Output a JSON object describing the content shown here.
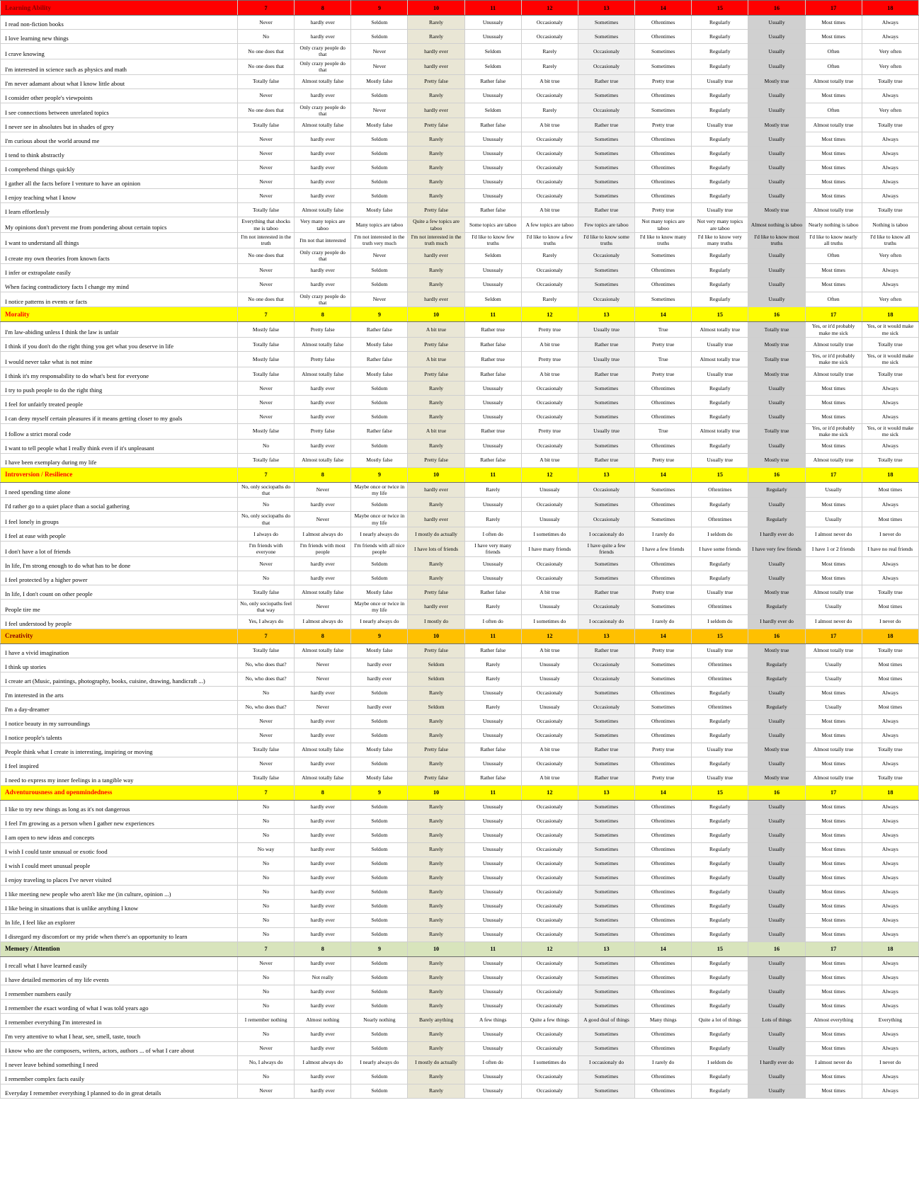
{
  "columns": [
    "7",
    "8",
    "9",
    "10",
    "11",
    "12",
    "13",
    "14",
    "15",
    "16",
    "17",
    "18"
  ],
  "column_bands": {
    "10": "#e9e6d5",
    "13": "#efefef",
    "16": "#d0d0d0"
  },
  "scales": {
    "freq_never": [
      "Never",
      "hardly ever",
      "Seldom",
      "Rarely",
      "Unusualy",
      "Occasionaly",
      "Sometimes",
      "Oftentimes",
      "Regularly",
      "Usually",
      "Most times",
      "Always"
    ],
    "freq_no": [
      "No",
      "hardly ever",
      "Seldom",
      "Rarely",
      "Unusualy",
      "Occasionaly",
      "Sometimes",
      "Oftentimes",
      "Regularly",
      "Usually",
      "Most times",
      "Always"
    ],
    "freq_not_really": [
      "No",
      "Not really",
      "Seldom",
      "Rarely",
      "Unusualy",
      "Occasionaly",
      "Sometimes",
      "Oftentimes",
      "Regularly",
      "Usually",
      "Most times",
      "Always"
    ],
    "freq_no_way": [
      "No way",
      "hardly ever",
      "Seldom",
      "Rarely",
      "Unusualy",
      "Occasionaly",
      "Sometimes",
      "Oftentimes",
      "Regularly",
      "Usually",
      "Most times",
      "Always"
    ],
    "no_one_does": [
      "No one does that",
      "Only crazy people do that",
      "Never",
      "hardly ever",
      "Seldom",
      "Rarely",
      "Occasionaly",
      "Sometimes",
      "Regularly",
      "Usually",
      "Often",
      "Very often"
    ],
    "false_true": [
      "Totally false",
      "Almost totally false",
      "Mostly false",
      "Pretty false",
      "Rather false",
      "A bit true",
      "Rather true",
      "Pretty true",
      "Usually true",
      "Mostly true",
      "Almost totally true",
      "Totally true"
    ],
    "true_sick": [
      "Mostly false",
      "Pretty false",
      "Rather false",
      "A bit true",
      "Rather true",
      "Pretty true",
      "Usually true",
      "True",
      "Almost totally true",
      "Totally true",
      "Yes, or it'd probably make me sick",
      "Yes, or it would make me sick"
    ],
    "taboo": [
      "Everything that shocks me is taboo",
      "Very many topics are taboo",
      "Many topics are taboo",
      "Quite a few topics are taboo",
      "Some topics are taboo",
      "A few topics are taboo",
      "Few topics are taboo",
      "Not many topics are taboo",
      "Not very many topics are taboo",
      "Almost nothing is taboo",
      "Nearly nothing is taboo",
      "Nothing is taboo"
    ],
    "truths": [
      "I'm not interested in the truth",
      "I'm not that interested",
      "I'm not interested in the truth very much",
      "I'm not interested in the truth much",
      "I'd like to know few truths",
      "I'd like to know a few truths",
      "I'd like to know some truths",
      "I'd like to know many truths",
      "I'd like to know very many truths",
      "I'd like to know most truths",
      "I'd like to know nearly all truths",
      "I'd like to know all truths"
    ],
    "sociopaths_do": [
      "No, only sociopaths do that",
      "Never",
      "Maybe once or twice in my life",
      "hardly ever",
      "Rarely",
      "Unusualy",
      "Occasionaly",
      "Sometimes",
      "Oftentimes",
      "Regularly",
      "Usually",
      "Most times"
    ],
    "sociopaths_feel": [
      "No, only sociopaths feel that way",
      "Never",
      "Maybe once or twice in my life",
      "hardly ever",
      "Rarely",
      "Unusualy",
      "Occasionaly",
      "Sometimes",
      "Oftentimes",
      "Regularly",
      "Usually",
      "Most times"
    ],
    "i_always_do": [
      "I always do",
      "I almost always do",
      "I nearly always do",
      "I mostly do actually",
      "I often do",
      "I sometimes do",
      "I occasionaly do",
      "I rarely do",
      "I seldom do",
      "I hardly ever do",
      "I almost never do",
      "I never do"
    ],
    "no_i_always_do": [
      "No, I always do",
      "I almost always do",
      "I nearly always do",
      "I mostly do actually",
      "I often do",
      "I sometimes do",
      "I occasionaly do",
      "I rarely do",
      "I seldom do",
      "I hardly ever do",
      "I almost never do",
      "I never do"
    ],
    "yes_i_always_do": [
      "Yes, I always do",
      "I almost always do",
      "I nearly always do",
      "I mostly do",
      "I often do",
      "I sometimes do",
      "I occasionaly do",
      "I rarely do",
      "I seldom do",
      "I hardly ever do",
      "I almost never do",
      "I never do"
    ],
    "who_does_that": [
      "No, who does that?",
      "Never",
      "hardly ever",
      "Seldom",
      "Rarely",
      "Unusualy",
      "Occasionaly",
      "Sometimes",
      "Oftentimes",
      "Regularly",
      "Usually",
      "Most times"
    ],
    "friends": [
      "I'm friends with everyone",
      "I'm friends with most people",
      "I'm friends with all nice people",
      "I have lots of friends",
      "I have very many friends",
      "I have many friends",
      "I have quite a few friends",
      "I have a few friends",
      "I have some friends",
      "I have very few friends",
      "I have 1 or 2 friends",
      "I have no real friends"
    ],
    "remember": [
      "I remember nothing",
      "Almost nothing",
      "Nearly nothing",
      "Barely anything",
      "A few things",
      "Quite a few things",
      "A good deal of things",
      "Many things",
      "Quite a lot of things",
      "Lots of things",
      "Almost everything",
      "Everything"
    ]
  },
  "sections": [
    {
      "title": "Learning Ability",
      "bg": "#ff0000",
      "title_color": "#8b0000",
      "rows": [
        {
          "label": "I read non-fiction books",
          "scale": "freq_never"
        },
        {
          "label": "I love learning new things",
          "scale": "freq_no"
        },
        {
          "label": "I crave knowing",
          "scale": "no_one_does"
        },
        {
          "label": "I'm interested in science such as physics and math",
          "scale": "no_one_does"
        },
        {
          "label": "I'm never adamant about what I know little about",
          "scale": "false_true"
        },
        {
          "label": "I consider other people's viewpoints",
          "scale": "freq_never"
        },
        {
          "label": "I see connections between unrelated topics",
          "scale": "no_one_does"
        },
        {
          "label": "I never see in absolutes but in shades of grey",
          "scale": "false_true"
        },
        {
          "label": "I'm curious about the world around me",
          "scale": "freq_never"
        },
        {
          "label": "I tend to think abstractly",
          "scale": "freq_never"
        },
        {
          "label": "I comprehend things quickly",
          "scale": "freq_never"
        },
        {
          "label": "I gather all the facts before I venture to have an opinion",
          "scale": "freq_never"
        },
        {
          "label": "I enjoy teaching what I know",
          "scale": "freq_never"
        },
        {
          "label": "I learn effortlessly",
          "scale": "false_true"
        },
        {
          "label": "My opinions don't prevent me from pondering about certain topics",
          "scale": "taboo"
        },
        {
          "label": "I want to understand all things",
          "scale": "truths"
        },
        {
          "label": "I create my own theories from known facts",
          "scale": "no_one_does"
        },
        {
          "label": "I infer or extrapolate easily",
          "scale": "freq_never"
        },
        {
          "label": "When facing contradictory facts I change my mind",
          "scale": "freq_never"
        },
        {
          "label": "I notice patterns in events or facts",
          "scale": "no_one_does"
        }
      ]
    },
    {
      "title": "Morality",
      "bg": "#ffff00",
      "title_color": "#ff0000",
      "rows": [
        {
          "label": "I'm law-abiding unless I think the law is unfair",
          "scale": "true_sick"
        },
        {
          "label": "I think if you don't do the right thing you get what you deserve in life",
          "scale": "false_true"
        },
        {
          "label": "I would never take what is not mine",
          "scale": "true_sick"
        },
        {
          "label": "I think it's my responsability to do what's best for everyone",
          "scale": "false_true"
        },
        {
          "label": "I try to push people to do the right thing",
          "scale": "freq_never"
        },
        {
          "label": "I feel for unfairly treated people",
          "scale": "freq_never"
        },
        {
          "label": "I can deny myself certain pleasures if it means getting closer to my goals",
          "scale": "freq_never"
        },
        {
          "label": "I follow a strict moral code",
          "scale": "true_sick"
        },
        {
          "label": "I want to tell people what I really think even if it's unpleasant",
          "scale": "freq_no"
        },
        {
          "label": "I have been exemplary during my life",
          "scale": "false_true"
        }
      ]
    },
    {
      "title": "Introversion / Resilience",
      "bg": "#ffff00",
      "title_color": "#ff0000",
      "rows": [
        {
          "label": "I need spending time alone",
          "scale": "sociopaths_do"
        },
        {
          "label": "I'd rather go to a quiet place than a social gathering",
          "scale": "freq_no"
        },
        {
          "label": "I feel lonely in groups",
          "scale": "sociopaths_do"
        },
        {
          "label": "I feel at ease with people",
          "scale": "i_always_do"
        },
        {
          "label": "I don't have a lot of friends",
          "scale": "friends"
        },
        {
          "label": "In life, I'm strong enough to do what has to be done",
          "scale": "freq_never"
        },
        {
          "label": "I feel protected by a higher power",
          "scale": "freq_no"
        },
        {
          "label": "In life, I don't count on other people",
          "scale": "false_true"
        },
        {
          "label": "People tire me",
          "scale": "sociopaths_feel"
        },
        {
          "label": "I feel understood by people",
          "scale": "yes_i_always_do"
        }
      ]
    },
    {
      "title": "Creativity",
      "bg": "#ffc000",
      "title_color": "#8b0000",
      "rows": [
        {
          "label": "I have a vivid imagination",
          "scale": "false_true"
        },
        {
          "label": "I think up stories",
          "scale": "who_does_that"
        },
        {
          "label": "I create art (Music, paintings, photography, books, cuisine, drawing, handicraft ...)",
          "scale": "who_does_that"
        },
        {
          "label": "I'm interested in the arts",
          "scale": "freq_no"
        },
        {
          "label": "I'm a day-dreamer",
          "scale": "who_does_that"
        },
        {
          "label": "I notice beauty in my surroundings",
          "scale": "freq_never"
        },
        {
          "label": "I notice people's talents",
          "scale": "freq_never"
        },
        {
          "label": "People think what I create is interesting, inspiring or moving",
          "scale": "false_true"
        },
        {
          "label": "I feel inspired",
          "scale": "freq_never"
        },
        {
          "label": "I need to express my inner feelings in a tangible way",
          "scale": "false_true"
        }
      ]
    },
    {
      "title": "Adventurousness and openmindedness",
      "bg": "#ffff00",
      "title_color": "#ff0000",
      "rows": [
        {
          "label": "I like to try new things as long as it's not dangerous",
          "scale": "freq_no"
        },
        {
          "label": "I feel I'm growing as a person when I gather new experiences",
          "scale": "freq_no"
        },
        {
          "label": "I am open to new ideas and concepts",
          "scale": "freq_no"
        },
        {
          "label": "I wish I could taste unusual or exotic food",
          "scale": "freq_no_way"
        },
        {
          "label": "I wish I could meet unusual people",
          "scale": "freq_no"
        },
        {
          "label": "I enjoy traveling to places I've never visited",
          "scale": "freq_no"
        },
        {
          "label": "I like meeting new people who aren't like me (in culture, opinion ...)",
          "scale": "freq_no"
        },
        {
          "label": "I like being in situations that is unlike anything I know",
          "scale": "freq_no"
        },
        {
          "label": "In life, I feel like an explorer",
          "scale": "freq_no"
        },
        {
          "label": "I disregard my discomfort or my pride when there's an opportunity to learn",
          "scale": "freq_no"
        }
      ]
    },
    {
      "title": "Memory / Attention",
      "bg": "#d8e4bc",
      "title_color": "#000000",
      "rows": [
        {
          "label": "I recall what I have learned easily",
          "scale": "freq_never"
        },
        {
          "label": "I have detailed memories of my life events",
          "scale": "freq_not_really"
        },
        {
          "label": "I remember numbers easily",
          "scale": "freq_no"
        },
        {
          "label": "I remember the exact wording of what I was told years ago",
          "scale": "freq_no"
        },
        {
          "label": "I remember everything I'm interested in",
          "scale": "remember"
        },
        {
          "label": "I'm very attentive to what I hear, see, smell, taste, touch",
          "scale": "freq_no"
        },
        {
          "label": "I know who are the composers, writers, actors, authors ... of what I care about",
          "scale": "freq_never"
        },
        {
          "label": "I never leave behind something I need",
          "scale": "no_i_always_do"
        },
        {
          "label": "I remember complex facts easily",
          "scale": "freq_no"
        },
        {
          "label": "Everyday I remember everything I planned to do in great details",
          "scale": "freq_never"
        }
      ]
    }
  ]
}
